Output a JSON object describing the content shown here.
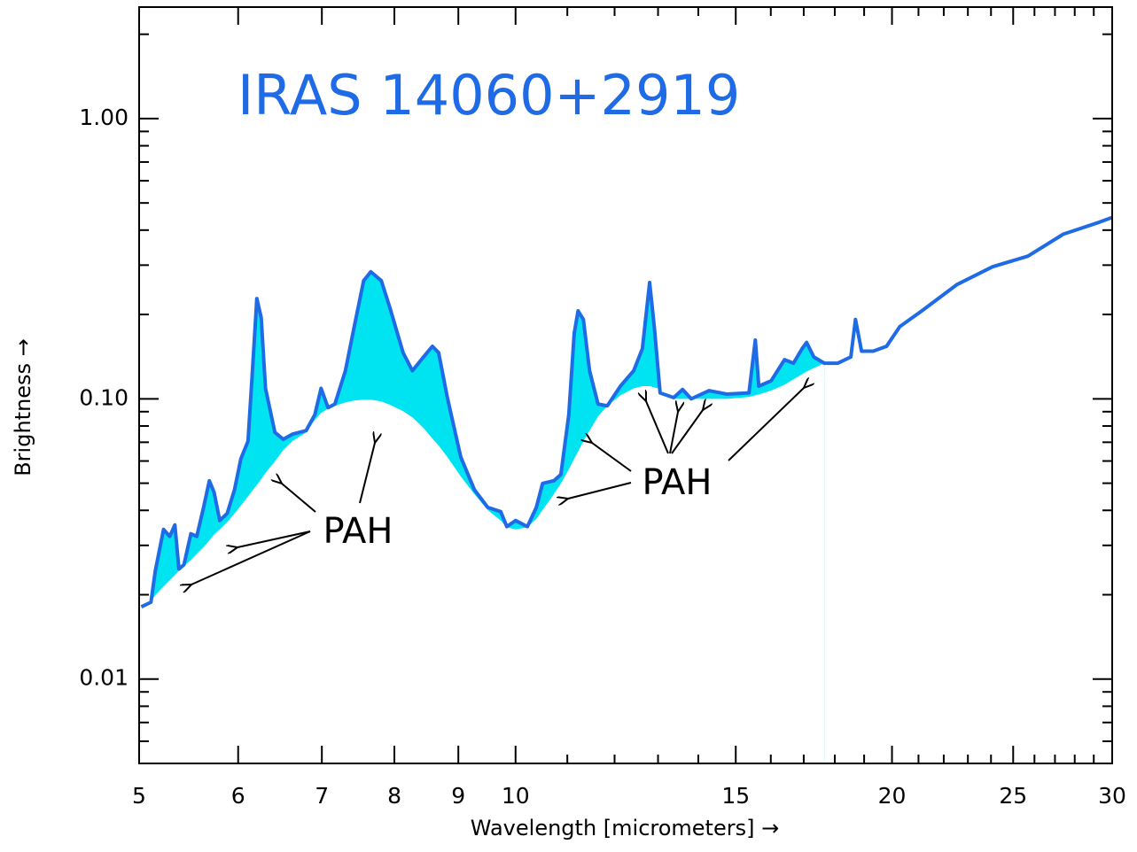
{
  "chart_data": {
    "type": "line",
    "title": "IRAS 14060+2919",
    "xlabel": "Wavelength [micrometers] →",
    "ylabel": "Brightness →",
    "annotations": [
      "PAH",
      "PAH"
    ],
    "xlog": true,
    "ylog": true,
    "grid": false,
    "xlim": [
      5,
      30
    ],
    "ylim": [
      0.005,
      2.5
    ],
    "xticks": [
      5,
      6,
      7,
      8,
      9,
      10,
      15,
      20,
      25,
      30
    ],
    "xminorticks": [
      11,
      12,
      13,
      14,
      16,
      17,
      18,
      19,
      21,
      22,
      23,
      24,
      26,
      27,
      28,
      29
    ],
    "yticks": [
      0.01,
      {
        "value": 0.1,
        "label": "0.10"
      },
      {
        "value": 1,
        "label": "1.00"
      }
    ],
    "yminorticks": [
      0.006,
      0.007,
      0.008,
      0.009,
      0.02,
      0.03,
      0.04,
      0.05,
      0.06,
      0.07,
      0.08,
      0.09,
      0.2,
      0.3,
      0.4,
      0.5,
      0.6,
      0.7,
      0.8,
      0.9,
      2
    ],
    "fill_color": "#00e4f2",
    "x": [
      5.02,
      5.11,
      5.15,
      5.23,
      5.29,
      5.34,
      5.38,
      5.43,
      5.5,
      5.56,
      5.63,
      5.69,
      5.74,
      5.8,
      5.88,
      5.96,
      6.03,
      6.11,
      6.16,
      6.21,
      6.26,
      6.31,
      6.42,
      6.52,
      6.63,
      6.8,
      6.91,
      6.99,
      7.08,
      7.17,
      7.31,
      7.43,
      7.56,
      7.66,
      7.81,
      7.94,
      8.13,
      8.27,
      8.44,
      8.58,
      8.68,
      8.82,
      9.04,
      9.27,
      9.5,
      9.73,
      9.84,
      10.0,
      10.22,
      10.39,
      10.51,
      10.73,
      10.87,
      11.03,
      11.14,
      11.22,
      11.33,
      11.46,
      11.64,
      11.84,
      12.13,
      12.43,
      12.63,
      12.8,
      12.91,
      13.05,
      13.38,
      13.6,
      13.82,
      14.28,
      14.75,
      15.37,
      15.55,
      15.65,
      16.01,
      16.41,
      16.68,
      16.95,
      17.09,
      17.32,
      17.66,
      18.1,
      18.54,
      18.7,
      18.91,
      19.32,
      19.8,
      20.29,
      21.13,
      22.55,
      24.07,
      25.69,
      27.42,
      29.26,
      30.0
    ],
    "series": [
      {
        "color": "#1f6be6",
        "values": [
          0.0181,
          0.0188,
          0.0242,
          0.0342,
          0.0323,
          0.0355,
          0.0247,
          0.0256,
          0.033,
          0.0323,
          0.041,
          0.051,
          0.0464,
          0.0368,
          0.039,
          0.0474,
          0.0611,
          0.0706,
          0.126,
          0.228,
          0.195,
          0.109,
          0.0759,
          0.0717,
          0.0748,
          0.077,
          0.0878,
          0.109,
          0.093,
          0.0958,
          0.126,
          0.181,
          0.264,
          0.284,
          0.264,
          0.209,
          0.146,
          0.126,
          0.141,
          0.154,
          0.146,
          0.101,
          0.062,
          0.0474,
          0.041,
          0.0396,
          0.035,
          0.0368,
          0.035,
          0.041,
          0.0499,
          0.051,
          0.0537,
          0.0878,
          0.171,
          0.206,
          0.192,
          0.126,
          0.0958,
          0.0944,
          0.111,
          0.126,
          0.151,
          0.26,
          0.181,
          0.105,
          0.101,
          0.108,
          0.1,
          0.107,
          0.104,
          0.105,
          0.162,
          0.111,
          0.116,
          0.138,
          0.134,
          0.151,
          0.159,
          0.141,
          0.134,
          0.134,
          0.141,
          0.192,
          0.148,
          0.148,
          0.154,
          0.181,
          0.206,
          0.256,
          0.296,
          0.323,
          0.387,
          0.426,
          0.444
        ]
      },
      {
        "color": "#ffffff",
        "values": [
          0.0181,
          0.0188,
          0.0199,
          0.0214,
          0.0225,
          0.0235,
          0.0244,
          0.0253,
          0.0266,
          0.028,
          0.0296,
          0.0312,
          0.0328,
          0.0342,
          0.0363,
          0.039,
          0.0416,
          0.0448,
          0.0471,
          0.0492,
          0.0517,
          0.0544,
          0.0598,
          0.0657,
          0.0706,
          0.0759,
          0.0841,
          0.0891,
          0.0923,
          0.0944,
          0.0971,
          0.0986,
          0.0993,
          0.0993,
          0.0979,
          0.0951,
          0.0904,
          0.0859,
          0.0787,
          0.0722,
          0.0681,
          0.062,
          0.0529,
          0.0457,
          0.0401,
          0.0368,
          0.0348,
          0.0342,
          0.0348,
          0.0373,
          0.0401,
          0.0457,
          0.0499,
          0.056,
          0.0611,
          0.0648,
          0.0706,
          0.077,
          0.0865,
          0.0944,
          0.1029,
          0.109,
          0.111,
          0.111,
          0.1099,
          0.1083,
          0.1,
          0.1,
          0.1,
          0.1,
          0.1,
          0.1015,
          0.1029,
          0.1037,
          0.107,
          0.1123,
          0.1173,
          0.1225,
          0.1252,
          0.1288,
          0.134,
          null,
          null,
          null,
          null,
          null,
          null,
          null,
          null,
          null,
          null,
          null,
          null,
          null,
          null
        ]
      }
    ]
  }
}
